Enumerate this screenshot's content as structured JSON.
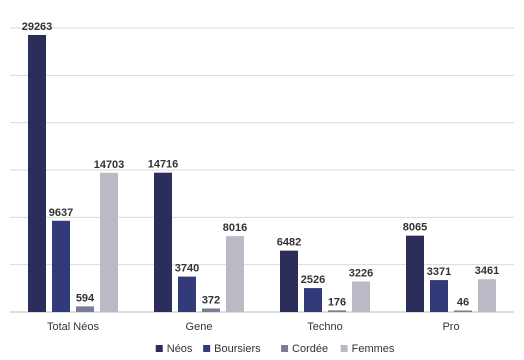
{
  "chart_data": {
    "type": "bar",
    "title": "",
    "xlabel": "",
    "ylabel": "",
    "ylim": [
      0,
      30000
    ],
    "grid": true,
    "legend_position": "bottom",
    "categories": [
      "Total Néos",
      "Gene",
      "Techno",
      "Pro"
    ],
    "series": [
      {
        "name": "Néos",
        "color": "#2b2d5a",
        "values": [
          29263,
          14716,
          6482,
          8065
        ]
      },
      {
        "name": "Boursiers",
        "color": "#333a7a",
        "values": [
          9637,
          3740,
          2526,
          3371
        ]
      },
      {
        "name": "Cordée",
        "color": "#7a7d99",
        "values": [
          594,
          372,
          176,
          46
        ]
      },
      {
        "name": "Femmes",
        "color": "#b9bac6",
        "values": [
          14703,
          8016,
          3226,
          3461
        ]
      }
    ]
  }
}
